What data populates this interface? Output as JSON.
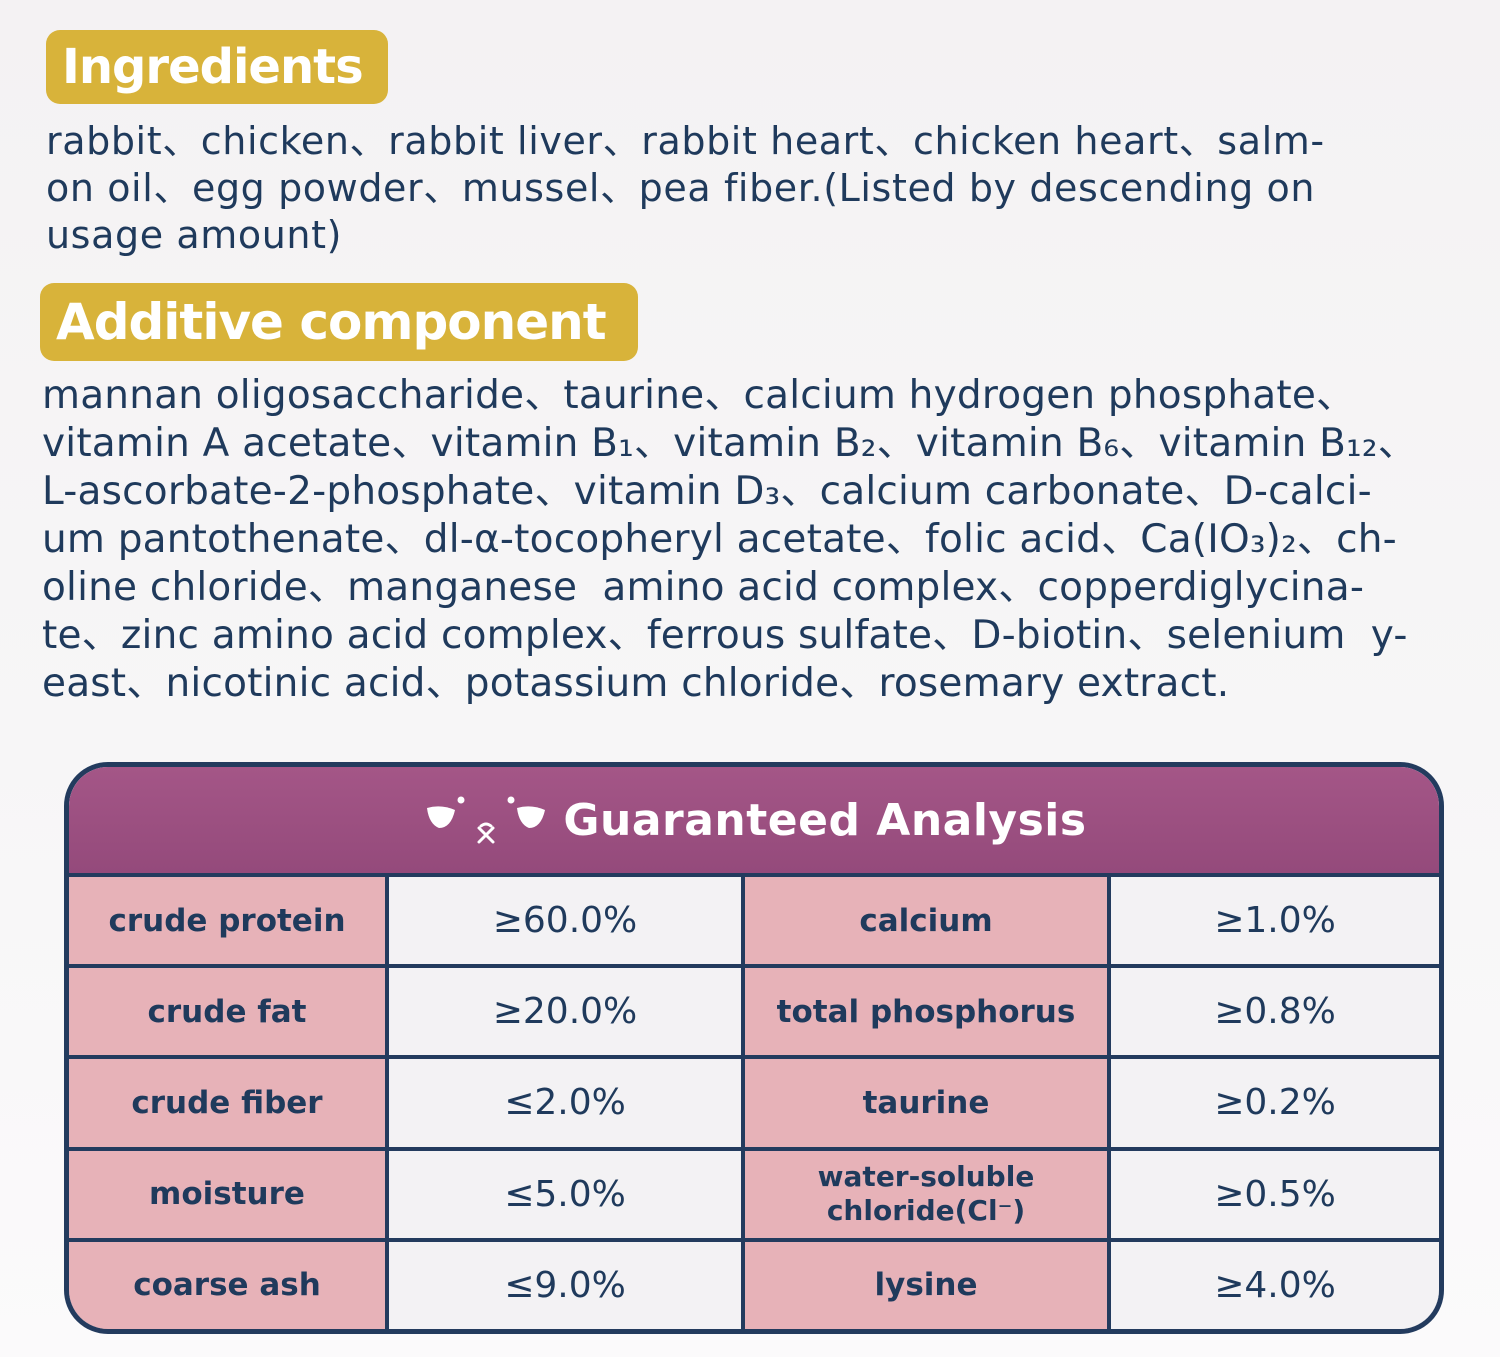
{
  "ingredients": {
    "heading": "Ingredients",
    "lines": [
      "rabbit、chicken、rabbit liver、rabbit heart、chicken heart、salm-",
      "on oil、egg powder、mussel、pea fiber.(Listed by descending on",
      "usage amount)"
    ]
  },
  "additive": {
    "heading": "Additive component",
    "lines": [
      "mannan oligosaccharide、taurine、calcium hydrogen phosphate、",
      "vitamin A acetate、vitamin B₁、vitamin B₂、vitamin B₆、vitamin B₁₂、",
      "L-ascorbate-2-phosphate、vitamin D₃、calcium carbonate、D-calci-",
      "um pantothenate、dl-α-tocopheryl acetate、folic acid、Ca(IO₃)₂、ch-",
      "oline chloride、manganese  amino acid complex、copperdiglycina-",
      "te、zinc amino acid complex、ferrous sulfate、D-biotin、selenium  y-",
      "east、nicotinic acid、potassium chloride、rosemary extract."
    ]
  },
  "analysis": {
    "title": "Guaranteed Analysis",
    "rows": [
      {
        "left_label": "crude protein",
        "left_value": "≥60.0%",
        "right_label": "calcium",
        "right_value": "≥1.0%"
      },
      {
        "left_label": "crude fat",
        "left_value": "≥20.0%",
        "right_label": "total phosphorus",
        "right_value": "≥0.8%"
      },
      {
        "left_label": "crude fiber",
        "left_value": "≤2.0%",
        "right_label": "taurine",
        "right_value": "≥0.2%"
      },
      {
        "left_label": "moisture",
        "left_value": "≤5.0%",
        "right_label": "water-soluble\nchloride(Cl⁻)",
        "right_value": "≥0.5%"
      },
      {
        "left_label": "coarse ash",
        "left_value": "≤9.0%",
        "right_label": "lysine",
        "right_value": "≥4.0%"
      }
    ]
  },
  "colors": {
    "badge": "#d8b33a",
    "text": "#1f3a5c",
    "header": "#9c5082",
    "label_cell": "#e7b2b8",
    "value_cell": "#f3f2f4",
    "border": "#233b5e"
  },
  "icons": {
    "header_icon": "cat-face-icon"
  }
}
